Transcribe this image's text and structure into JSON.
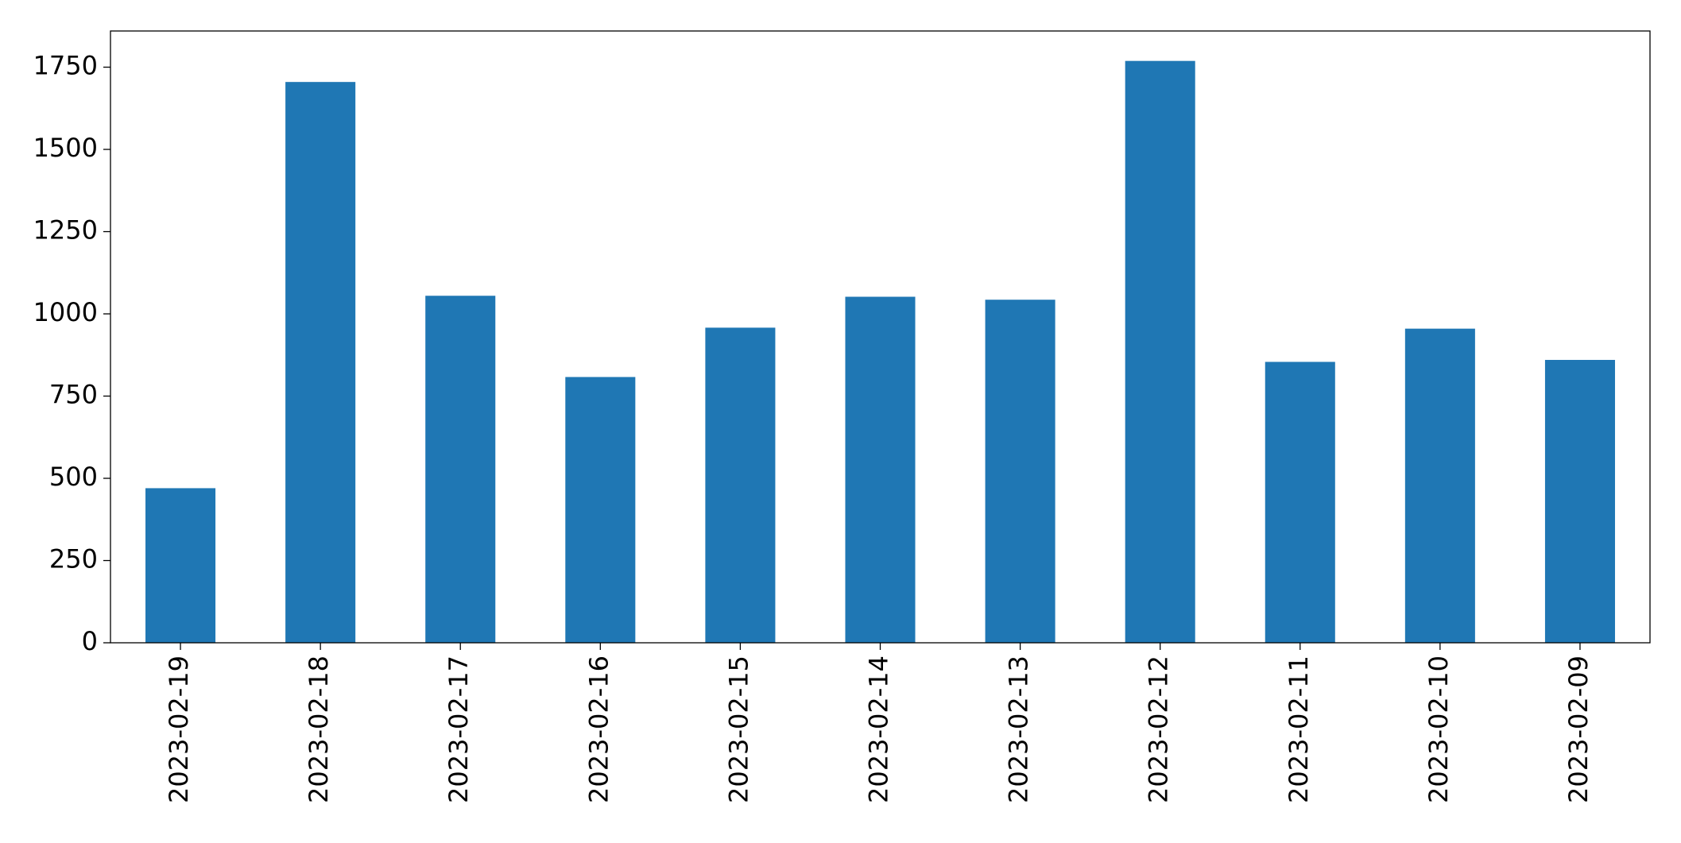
{
  "chart_data": {
    "type": "bar",
    "categories": [
      "2023-02-19",
      "2023-02-18",
      "2023-02-17",
      "2023-02-16",
      "2023-02-15",
      "2023-02-14",
      "2023-02-13",
      "2023-02-12",
      "2023-02-11",
      "2023-02-10",
      "2023-02-09"
    ],
    "values": [
      470,
      1705,
      1055,
      808,
      958,
      1052,
      1043,
      1769,
      854,
      955,
      860
    ],
    "color": "#1f77b4",
    "ylim": [
      0,
      1860
    ],
    "yticks": [
      0,
      250,
      500,
      750,
      1000,
      1250,
      1500,
      1750
    ],
    "grid": false
  }
}
